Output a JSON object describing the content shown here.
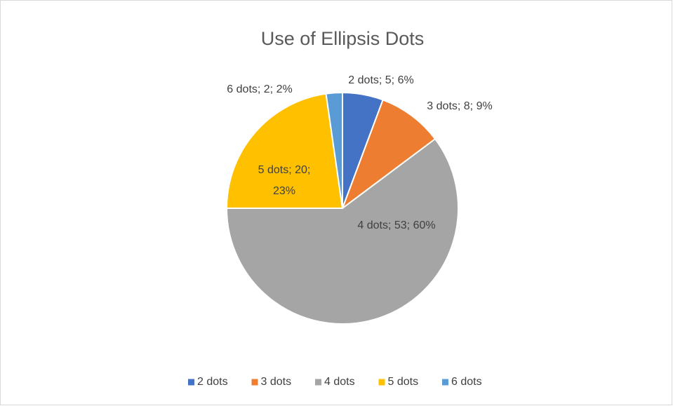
{
  "chart_data": {
    "type": "pie",
    "title": "Use of Ellipsis Dots",
    "categories": [
      "2 dots",
      "3 dots",
      "4 dots",
      "5 dots",
      "6 dots"
    ],
    "values": [
      5,
      8,
      53,
      20,
      2
    ],
    "value_labels": [
      "2 dots; 5; 6%",
      "3 dots; 8; 9%",
      "4 dots; 53; 60%",
      "5 dots; 20; 23%",
      "6 dots; 2; 2%"
    ],
    "colors": [
      "#4472c4",
      "#ed7d31",
      "#a5a5a5",
      "#ffc000",
      "#5b9bd5"
    ],
    "legend": "bottom"
  }
}
